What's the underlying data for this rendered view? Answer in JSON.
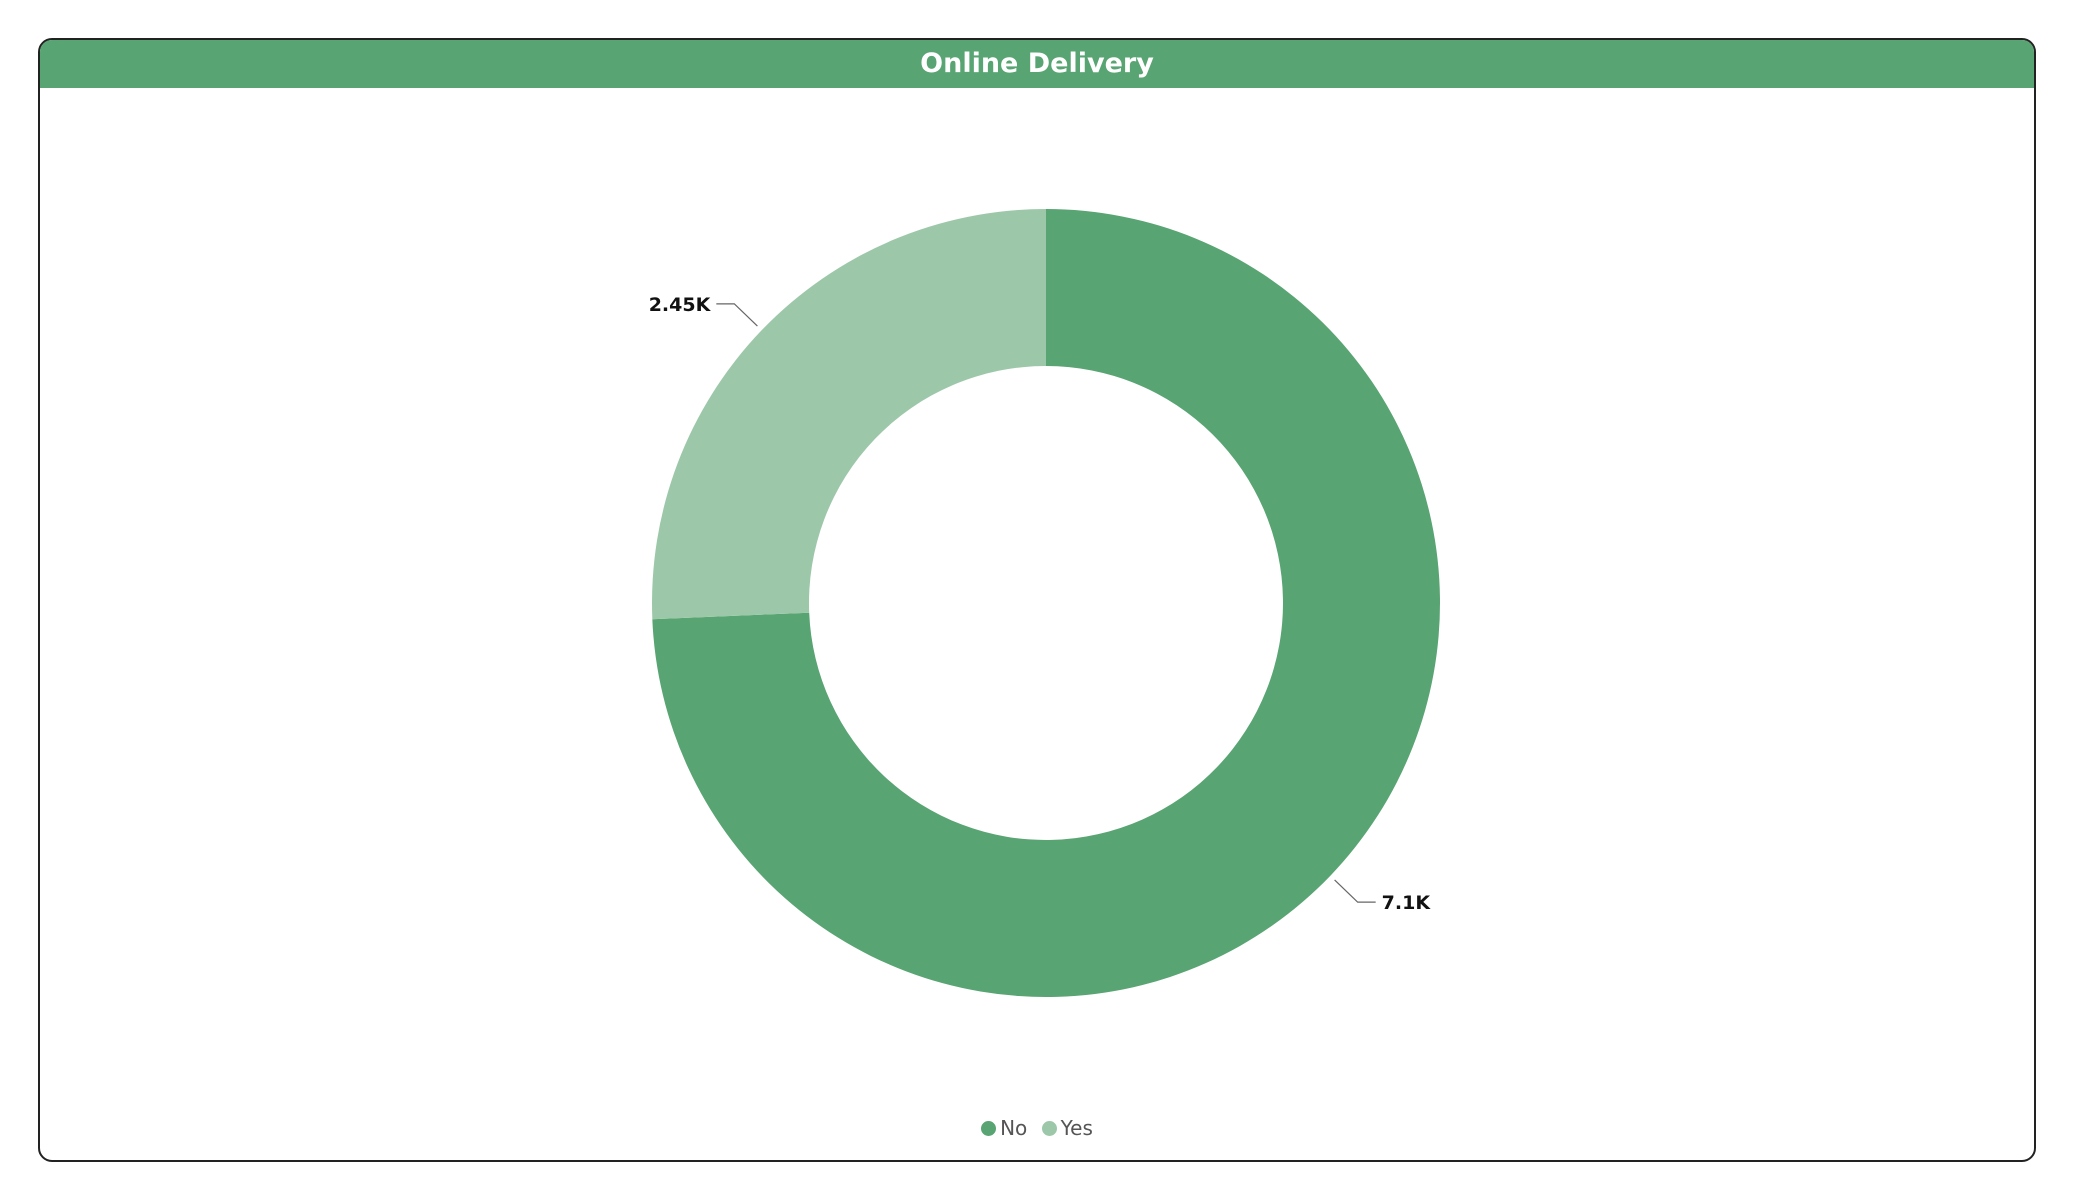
{
  "chart_data": {
    "type": "pie",
    "title": "Online Delivery",
    "categories": [
      "No",
      "Yes"
    ],
    "values": [
      7100,
      2450
    ],
    "value_labels": [
      "7.1K",
      "2.45K"
    ],
    "colors": [
      "#58a472",
      "#9cc8a9"
    ],
    "legend": [
      "No",
      "Yes"
    ],
    "legend_position": "bottom-center"
  },
  "colors": {
    "title_bar": "#58a472",
    "border": "#222222"
  }
}
